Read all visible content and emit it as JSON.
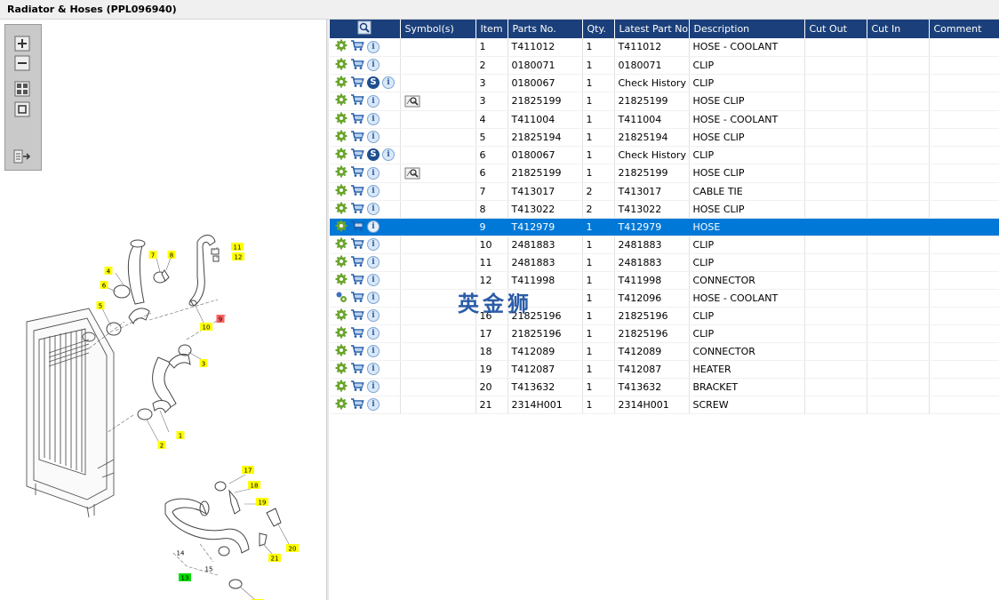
{
  "window": {
    "title": "Radiator & Hoses (PPL096940)"
  },
  "toolbar": {
    "buttons": [
      "zoom-in-icon",
      "zoom-out-icon",
      "fit-all-icon",
      "actual-size-icon",
      "export-list-icon"
    ]
  },
  "diagram": {
    "callouts": [
      "1",
      "2",
      "3",
      "4",
      "5",
      "6",
      "7",
      "8",
      "9",
      "10",
      "11",
      "12",
      "13",
      "14",
      "15",
      "16",
      "17",
      "18",
      "19",
      "20",
      "21"
    ]
  },
  "table": {
    "headers": [
      "Symbol(s)",
      "Item",
      "Parts No.",
      "Qty.",
      "Latest Part No.",
      "Description",
      "Cut Out",
      "Cut In",
      "Comment"
    ],
    "rows": [
      {
        "symbol": "",
        "s": false,
        "item": "1",
        "part": "T411012",
        "qty": "1",
        "latest": "T411012",
        "desc": "HOSE - COOLANT"
      },
      {
        "symbol": "",
        "s": false,
        "item": "2",
        "part": "0180071",
        "qty": "1",
        "latest": "0180071",
        "desc": "CLIP"
      },
      {
        "symbol": "",
        "s": true,
        "item": "3",
        "part": "0180067",
        "qty": "1",
        "latest": "Check History",
        "desc": "CLIP"
      },
      {
        "symbol": "view",
        "s": false,
        "item": "3",
        "part": "21825199",
        "qty": "1",
        "latest": "21825199",
        "desc": "HOSE CLIP"
      },
      {
        "symbol": "",
        "s": false,
        "item": "4",
        "part": "T411004",
        "qty": "1",
        "latest": "T411004",
        "desc": "HOSE - COOLANT"
      },
      {
        "symbol": "",
        "s": false,
        "item": "5",
        "part": "21825194",
        "qty": "1",
        "latest": "21825194",
        "desc": "HOSE CLIP"
      },
      {
        "symbol": "",
        "s": true,
        "item": "6",
        "part": "0180067",
        "qty": "1",
        "latest": "Check History",
        "desc": "CLIP"
      },
      {
        "symbol": "view",
        "s": false,
        "item": "6",
        "part": "21825199",
        "qty": "1",
        "latest": "21825199",
        "desc": "HOSE CLIP"
      },
      {
        "symbol": "",
        "s": false,
        "item": "7",
        "part": "T413017",
        "qty": "2",
        "latest": "T413017",
        "desc": "CABLE TIE"
      },
      {
        "symbol": "",
        "s": false,
        "item": "8",
        "part": "T413022",
        "qty": "2",
        "latest": "T413022",
        "desc": "HOSE CLIP"
      },
      {
        "symbol": "",
        "s": false,
        "item": "9",
        "part": "T412979",
        "qty": "1",
        "latest": "T412979",
        "desc": "HOSE",
        "selected": true
      },
      {
        "symbol": "",
        "s": false,
        "item": "10",
        "part": "2481883",
        "qty": "1",
        "latest": "2481883",
        "desc": "CLIP"
      },
      {
        "symbol": "",
        "s": false,
        "item": "11",
        "part": "2481883",
        "qty": "1",
        "latest": "2481883",
        "desc": "CLIP"
      },
      {
        "symbol": "",
        "s": false,
        "item": "12",
        "part": "T411998",
        "qty": "1",
        "latest": "T411998",
        "desc": "CONNECTOR"
      },
      {
        "symbol": "",
        "s": false,
        "item": "",
        "part": "",
        "qty": "1",
        "latest": "T412096",
        "desc": "HOSE - COOLANT",
        "gear": "multi"
      },
      {
        "symbol": "",
        "s": false,
        "item": "16",
        "part": "21825196",
        "qty": "1",
        "latest": "21825196",
        "desc": "CLIP"
      },
      {
        "symbol": "",
        "s": false,
        "item": "17",
        "part": "21825196",
        "qty": "1",
        "latest": "21825196",
        "desc": "CLIP"
      },
      {
        "symbol": "",
        "s": false,
        "item": "18",
        "part": "T412089",
        "qty": "1",
        "latest": "T412089",
        "desc": "CONNECTOR"
      },
      {
        "symbol": "",
        "s": false,
        "item": "19",
        "part": "T412087",
        "qty": "1",
        "latest": "T412087",
        "desc": "HEATER"
      },
      {
        "symbol": "",
        "s": false,
        "item": "20",
        "part": "T413632",
        "qty": "1",
        "latest": "T413632",
        "desc": "BRACKET"
      },
      {
        "symbol": "",
        "s": false,
        "item": "21",
        "part": "2314H001",
        "qty": "1",
        "latest": "2314H001",
        "desc": "SCREW"
      }
    ]
  },
  "watermark": {
    "text": "英金狮"
  },
  "colors": {
    "header_bg": "#1a3f7a",
    "selected_row": "#0078d7",
    "callout_yellow": "#ffff00",
    "callout_green": "#00dd00",
    "callout_red": "#ff6060"
  }
}
